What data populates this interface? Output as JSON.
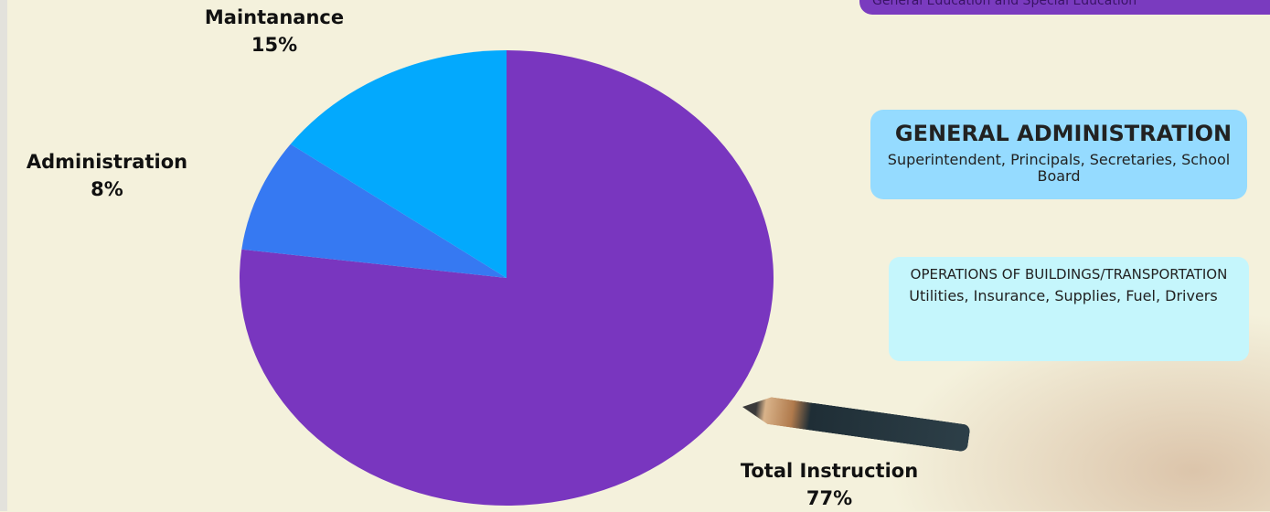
{
  "chart_data": {
    "type": "pie",
    "title": "",
    "slices": [
      {
        "label": "Total Instruction",
        "percent_label": "77%",
        "value": 77,
        "color": "#7936bf"
      },
      {
        "label": "Administration",
        "percent_label": "8%",
        "value": 8,
        "color": "#3679f2"
      },
      {
        "label": "Maintanance",
        "percent_label": "15%",
        "value": 15,
        "color": "#03a9fd"
      }
    ]
  },
  "legend_boxes": {
    "top": {
      "subtitle": "General Education and Special Education"
    },
    "admin": {
      "title": "GENERAL ADMINISTRATION",
      "subtitle": "Superintendent, Principals, Secretaries, School Board"
    },
    "ops": {
      "title": "OPERATIONS OF BUILDINGS/TRANSPORTATION",
      "subtitle": "Utilities, Insurance, Supplies, Fuel, Drivers"
    }
  }
}
